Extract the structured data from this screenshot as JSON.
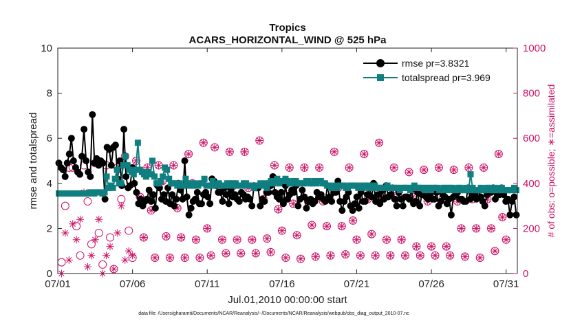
{
  "chart_data": {
    "type": "line",
    "title": "Tropics",
    "subtitle": "ACARS_HORIZONTAL_WIND @ 525 hPa",
    "xlabel": "Jul.01,2010 00:00:00 start",
    "ylabel": "rmse and totalspread",
    "ylabel_right": "# of obs: o=possible; ∗=assimilated",
    "footnote": "data file: /Users/gharamti/Documents/NCAR/Reanalysis/~/Documents/NCAR/Reanalysis/webpub/obs_diag_output_2010-07.nc",
    "x_range": [
      0,
      30.75
    ],
    "x_tick_values": [
      0,
      5,
      10,
      15,
      20,
      25,
      30
    ],
    "x_tick_labels": [
      "07/01",
      "07/06",
      "07/11",
      "07/16",
      "07/21",
      "07/26",
      "07/31"
    ],
    "ylim": [
      0,
      10
    ],
    "y_ticks": [
      "0",
      "2",
      "4",
      "6",
      "8",
      "10"
    ],
    "ylim_right": [
      0,
      1000
    ],
    "y_ticks_right": [
      "0",
      "200",
      "400",
      "600",
      "800",
      "1000"
    ],
    "legend_position": "top-right",
    "colors": {
      "rmse": "#000000",
      "spread": "#0f7f80",
      "obs": "#cc1166"
    },
    "series": [
      {
        "name": "rmse pr=3.8321",
        "values": [
          4.9,
          4.7,
          4.6,
          4.3,
          4.9,
          5.3,
          6.0,
          5.0,
          4.7,
          4.5,
          4.4,
          5.2,
          6.4,
          5.0,
          4.5,
          4.3,
          7.05,
          4.9,
          5.1,
          4.8,
          5.0,
          4.9,
          3.3,
          5.6,
          5.5,
          4.8,
          5.6,
          5.7,
          4.2,
          5.0,
          3.9,
          6.4,
          4.3,
          3.8,
          3.9,
          4.7,
          4.0,
          3.6,
          3.1,
          3.3,
          3.0,
          3.2,
          3.3,
          3.7,
          3.2,
          3.5,
          2.9,
          3.9,
          3.8,
          3.3,
          3.5,
          3.2,
          3.8,
          3.1,
          3.5,
          3.0,
          3.3,
          4.0,
          3.7,
          3.3,
          5.0,
          3.4,
          2.6,
          2.9,
          3.2,
          3.3,
          3.6,
          3.1,
          3.1,
          3.5,
          3.6,
          3.4,
          3.1,
          4.2,
          4.1,
          3.9,
          3.6,
          3.6,
          3.2,
          3.8,
          3.5,
          3.1,
          3.7,
          3.4,
          3.5,
          3.3,
          3.2,
          3.6,
          3.5,
          3.3,
          3.4,
          3.3,
          3.0,
          3.9,
          3.8,
          3.8,
          3.0,
          3.3,
          3.2,
          3.6,
          3.6,
          3.9,
          4.3,
          3.6,
          3.4,
          3.3,
          3.6,
          3.1,
          3.9,
          3.3,
          3.5,
          3.7,
          3.6,
          3.9,
          3.0,
          3.3,
          3.7,
          3.4,
          2.9,
          3.2,
          3.3,
          3.1,
          3.2,
          3.6,
          3.4,
          3.5,
          3.3,
          3.2,
          3.9,
          3.4,
          3.2,
          3.6,
          3.6,
          4.1,
          3.2,
          2.8,
          3.2,
          3.4,
          3.6,
          3.0,
          2.8,
          3.1,
          3.4,
          2.9,
          3.6,
          3.2,
          3.2,
          3.5,
          3.8,
          3.4,
          4.0,
          3.2,
          3.5,
          3.1,
          3.7,
          3.3,
          3.9,
          3.4,
          3.5,
          3.8,
          3.3,
          3.0,
          3.6,
          3.3,
          3.0,
          3.4,
          3.4,
          3.3,
          3.7,
          3.1,
          3.2,
          3.6,
          3.0,
          3.5,
          3.5,
          3.4,
          3.3,
          3.5,
          3.3,
          3.3,
          3.6,
          3.0,
          3.2,
          3.5,
          3.4,
          3.1,
          3.3,
          2.6,
          3.4,
          3.5,
          3.6,
          3.3,
          3.3,
          3.2,
          3.2,
          3.8,
          3.3,
          3.5,
          3.5,
          3.3,
          3.7,
          3.4,
          3.2,
          3.0,
          3.5,
          3.6,
          3.6,
          3.8,
          3.3,
          3.5,
          3.5,
          3.8,
          3.5,
          3.2,
          3.3,
          2.6,
          3.2,
          3.4,
          2.6
        ]
      },
      {
        "name": "totalspread pr=3.969",
        "start_index": 0,
        "values": [
          3.55,
          3.55,
          3.55,
          3.55,
          3.55,
          3.55,
          3.55,
          3.55,
          3.55,
          3.55,
          3.55,
          3.55,
          3.55,
          3.55,
          3.55,
          3.6,
          3.6,
          3.55,
          3.6,
          3.6,
          3.6,
          3.55,
          3.6,
          4.3,
          3.8,
          3.9,
          3.8,
          4.2,
          4.6,
          4.0,
          4.0,
          4.8,
          5.2,
          4.8,
          4.6,
          4.5,
          4.4,
          4.6,
          5.8,
          4.6,
          4.5,
          4.4,
          4.3,
          4.5,
          4.4,
          5.0,
          4.3,
          4.0,
          4.0,
          4.1,
          4.3,
          4.7,
          4.6,
          4.2,
          4.0,
          4.0,
          4.0,
          3.9,
          4.0,
          3.9,
          3.9,
          4.2,
          4.0,
          3.9,
          3.9,
          4.0,
          3.9,
          3.9,
          4.0,
          4.0,
          4.2,
          3.9,
          3.9,
          3.9,
          4.1,
          3.9,
          3.9,
          4.0,
          3.9,
          3.9,
          3.9,
          4.0,
          4.0,
          3.9,
          4.0,
          4.0,
          3.9,
          3.9,
          3.9,
          4.0,
          4.0,
          3.9,
          3.9,
          3.9,
          3.8,
          3.9,
          3.9,
          4.0,
          3.9,
          4.0,
          3.8,
          4.0,
          4.1,
          4.0,
          4.1,
          4.2,
          4.0,
          4.1,
          4.1,
          4.2,
          4.1,
          4.0,
          4.0,
          4.1,
          4.1,
          4.0,
          4.0,
          4.0,
          4.0,
          4.1,
          4.1,
          4.0,
          4.0,
          4.1,
          4.0,
          4.1,
          4.1,
          4.0,
          4.0,
          3.9,
          3.9,
          3.8,
          3.8,
          3.9,
          3.8,
          3.9,
          3.9,
          3.9,
          3.8,
          3.8,
          3.9,
          3.9,
          3.9,
          3.9,
          3.8,
          3.9,
          3.8,
          3.9,
          3.9,
          3.8,
          3.9,
          3.8,
          3.9,
          3.8,
          3.8,
          3.8,
          3.8,
          3.8,
          3.9,
          3.8,
          3.8,
          3.8,
          3.8,
          3.8,
          3.7,
          3.8,
          3.8,
          3.8,
          3.8,
          3.7,
          3.8,
          3.9,
          3.8,
          3.8,
          3.8,
          3.8,
          3.7,
          3.8,
          3.8,
          3.7,
          3.8,
          3.8,
          3.8,
          3.7,
          3.7,
          3.8,
          3.8,
          3.7,
          3.8,
          3.8,
          3.7,
          3.7,
          3.8,
          3.8,
          3.7,
          3.7,
          3.8,
          3.7,
          4.4,
          3.8,
          3.7,
          3.7,
          3.7,
          3.8,
          3.7,
          3.7,
          3.8,
          3.8,
          3.7,
          3.7,
          3.8,
          3.7,
          3.7,
          3.8,
          3.7,
          3.7,
          3.7,
          3.7,
          3.7,
          3.8,
          3.7
        ]
      }
    ],
    "obs_possible": [
      [
        0.25,
        50
      ],
      [
        0.5,
        300
      ],
      [
        0.75,
        470
      ],
      [
        1.0,
        470
      ],
      [
        1.25,
        210
      ],
      [
        1.5,
        80
      ],
      [
        1.75,
        480
      ],
      [
        2.0,
        320
      ],
      [
        2.25,
        130
      ],
      [
        2.5,
        490
      ],
      [
        2.75,
        180
      ],
      [
        3.0,
        40
      ],
      [
        3.25,
        480
      ],
      [
        3.5,
        160
      ],
      [
        3.75,
        20
      ],
      [
        4.0,
        470
      ],
      [
        4.25,
        330
      ],
      [
        4.5,
        520
      ],
      [
        4.75,
        190
      ],
      [
        5.0,
        70
      ],
      [
        5.25,
        500
      ],
      [
        5.5,
        340
      ],
      [
        5.75,
        160
      ],
      [
        6.0,
        470
      ],
      [
        6.25,
        280
      ],
      [
        6.5,
        70
      ],
      [
        6.75,
        480
      ],
      [
        7.0,
        410
      ],
      [
        7.25,
        165
      ],
      [
        7.5,
        70
      ],
      [
        7.75,
        480
      ],
      [
        8.0,
        290
      ],
      [
        8.25,
        160
      ],
      [
        8.5,
        70
      ],
      [
        8.75,
        530
      ],
      [
        9.0,
        400
      ],
      [
        9.25,
        150
      ],
      [
        9.5,
        70
      ],
      [
        9.75,
        580
      ],
      [
        10.0,
        200
      ],
      [
        10.25,
        80
      ],
      [
        10.5,
        560
      ],
      [
        10.75,
        390
      ],
      [
        11.0,
        150
      ],
      [
        11.25,
        90
      ],
      [
        11.5,
        540
      ],
      [
        11.75,
        390
      ],
      [
        12.0,
        150
      ],
      [
        12.25,
        90
      ],
      [
        12.5,
        540
      ],
      [
        12.75,
        380
      ],
      [
        13.0,
        150
      ],
      [
        13.25,
        90
      ],
      [
        13.5,
        590
      ],
      [
        13.75,
        330
      ],
      [
        14.0,
        155
      ],
      [
        14.25,
        95
      ],
      [
        14.5,
        480
      ],
      [
        14.75,
        285
      ],
      [
        15.0,
        190
      ],
      [
        15.25,
        70
      ],
      [
        15.5,
        470
      ],
      [
        15.75,
        310
      ],
      [
        16.0,
        170
      ],
      [
        16.25,
        65
      ],
      [
        16.5,
        470
      ],
      [
        16.75,
        320
      ],
      [
        17.0,
        215
      ],
      [
        17.25,
        75
      ],
      [
        17.5,
        470
      ],
      [
        17.75,
        320
      ],
      [
        18.0,
        210
      ],
      [
        18.25,
        80
      ],
      [
        18.5,
        540
      ],
      [
        18.75,
        380
      ],
      [
        19.0,
        210
      ],
      [
        19.25,
        85
      ],
      [
        19.5,
        470
      ],
      [
        19.75,
        235
      ],
      [
        20.0,
        150
      ],
      [
        20.25,
        80
      ],
      [
        20.5,
        530
      ],
      [
        20.75,
        330
      ],
      [
        21.0,
        175
      ],
      [
        21.25,
        80
      ],
      [
        21.5,
        580
      ],
      [
        21.75,
        340
      ],
      [
        22.0,
        150
      ],
      [
        22.25,
        80
      ],
      [
        22.5,
        470
      ],
      [
        22.75,
        350
      ],
      [
        23.0,
        150
      ],
      [
        23.25,
        80
      ],
      [
        23.5,
        450
      ],
      [
        23.75,
        340
      ],
      [
        24.0,
        120
      ],
      [
        24.25,
        80
      ],
      [
        24.5,
        460
      ],
      [
        24.75,
        320
      ],
      [
        25.0,
        120
      ],
      [
        25.25,
        80
      ],
      [
        25.5,
        470
      ],
      [
        25.75,
        330
      ],
      [
        26.0,
        120
      ],
      [
        26.25,
        80
      ],
      [
        26.5,
        460
      ],
      [
        26.75,
        320
      ],
      [
        27.0,
        200
      ],
      [
        27.25,
        75
      ],
      [
        27.5,
        470
      ],
      [
        27.75,
        330
      ],
      [
        28.0,
        200
      ],
      [
        28.25,
        70
      ],
      [
        28.5,
        470
      ],
      [
        28.75,
        330
      ],
      [
        29.0,
        200
      ],
      [
        29.25,
        100
      ],
      [
        29.5,
        530
      ],
      [
        29.75,
        250
      ],
      [
        30.0,
        150
      ]
    ],
    "obs_assimilated": [
      [
        0.25,
        0
      ],
      [
        0.5,
        180
      ],
      [
        0.75,
        60
      ],
      [
        1.0,
        220
      ],
      [
        1.25,
        150
      ],
      [
        1.5,
        240
      ],
      [
        1.75,
        360
      ],
      [
        2.0,
        30
      ],
      [
        2.25,
        80
      ],
      [
        2.5,
        150
      ],
      [
        2.75,
        240
      ],
      [
        3.0,
        0
      ],
      [
        3.25,
        80
      ],
      [
        3.5,
        120
      ],
      [
        3.75,
        20
      ],
      [
        4.0,
        180
      ],
      [
        4.25,
        300
      ],
      [
        4.5,
        60
      ],
      [
        4.75,
        100
      ],
      [
        5.0,
        80
      ]
    ]
  }
}
